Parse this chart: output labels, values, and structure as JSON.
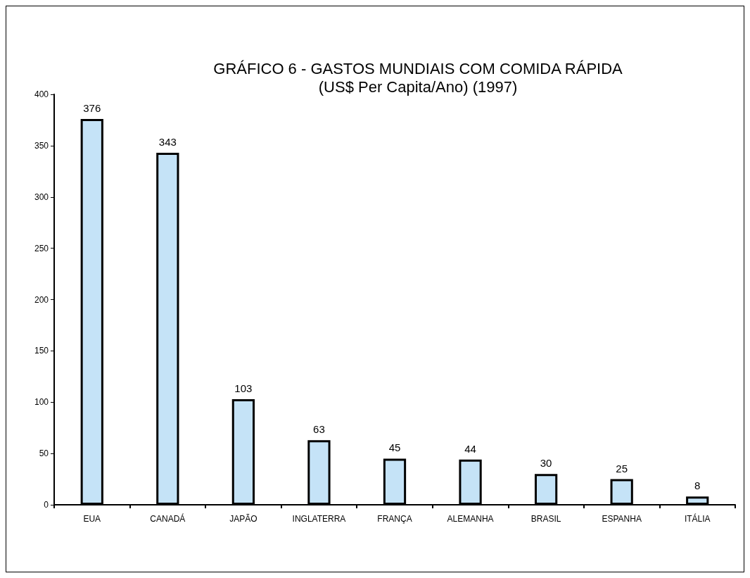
{
  "chart_data": {
    "type": "bar",
    "title": "GRÁFICO 6 - GASTOS MUNDIAIS COM COMIDA RÁPIDA\n(US$ Per Capita/Ano) (1997)",
    "categories": [
      "EUA",
      "CANADÁ",
      "JAPÃO",
      "INGLATERRA",
      "FRANÇA",
      "ALEMANHA",
      "BRASIL",
      "ESPANHA",
      "ITÁLIA"
    ],
    "values": [
      376,
      343,
      103,
      63,
      45,
      44,
      30,
      25,
      8
    ],
    "color": "#c5e3f7",
    "ylim": [
      0,
      400
    ],
    "yticks": [
      0,
      50,
      100,
      150,
      200,
      250,
      300,
      350,
      400
    ],
    "grid": false,
    "data_labels": true
  }
}
